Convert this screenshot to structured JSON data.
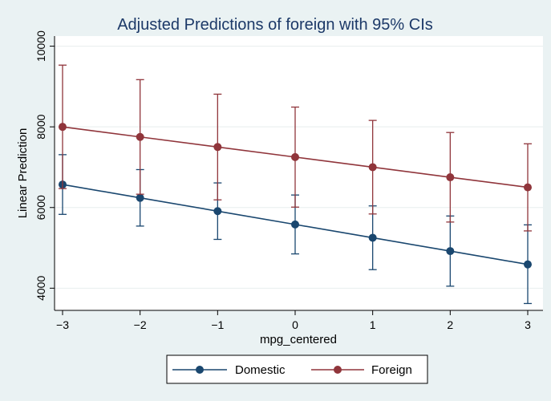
{
  "chart_data": {
    "type": "line",
    "title": "Adjusted Predictions of foreign with 95% CIs",
    "xlabel": "mpg_centered",
    "ylabel": "Linear Prediction",
    "x": [
      -3,
      -2,
      -1,
      0,
      1,
      2,
      3
    ],
    "x_tick_labels": [
      "−3",
      "−2",
      "−1",
      "0",
      "1",
      "2",
      "3"
    ],
    "y_ticks": [
      4000,
      6000,
      8000,
      10000
    ],
    "y_tick_labels": [
      "4000",
      "6000",
      "8000",
      "10000"
    ],
    "xlim": [
      -3,
      3
    ],
    "ylim": [
      3450,
      10250
    ],
    "grid": true,
    "legend_position": "bottom",
    "series": [
      {
        "name": "Domestic",
        "color": "#1a476f",
        "values": [
          6570,
          6240,
          5910,
          5580,
          5250,
          4920,
          4590
        ],
        "ci_low": [
          5830,
          5540,
          5210,
          4850,
          4460,
          4050,
          3620
        ],
        "ci_high": [
          7310,
          6940,
          6610,
          6310,
          6040,
          5790,
          5570
        ]
      },
      {
        "name": "Foreign",
        "color": "#90353b",
        "values": [
          8000,
          7750,
          7500,
          7250,
          7000,
          6750,
          6500
        ],
        "ci_low": [
          6470,
          6330,
          6190,
          6010,
          5840,
          5640,
          5420
        ],
        "ci_high": [
          9530,
          9170,
          8810,
          8490,
          8160,
          7860,
          7580
        ]
      }
    ]
  }
}
